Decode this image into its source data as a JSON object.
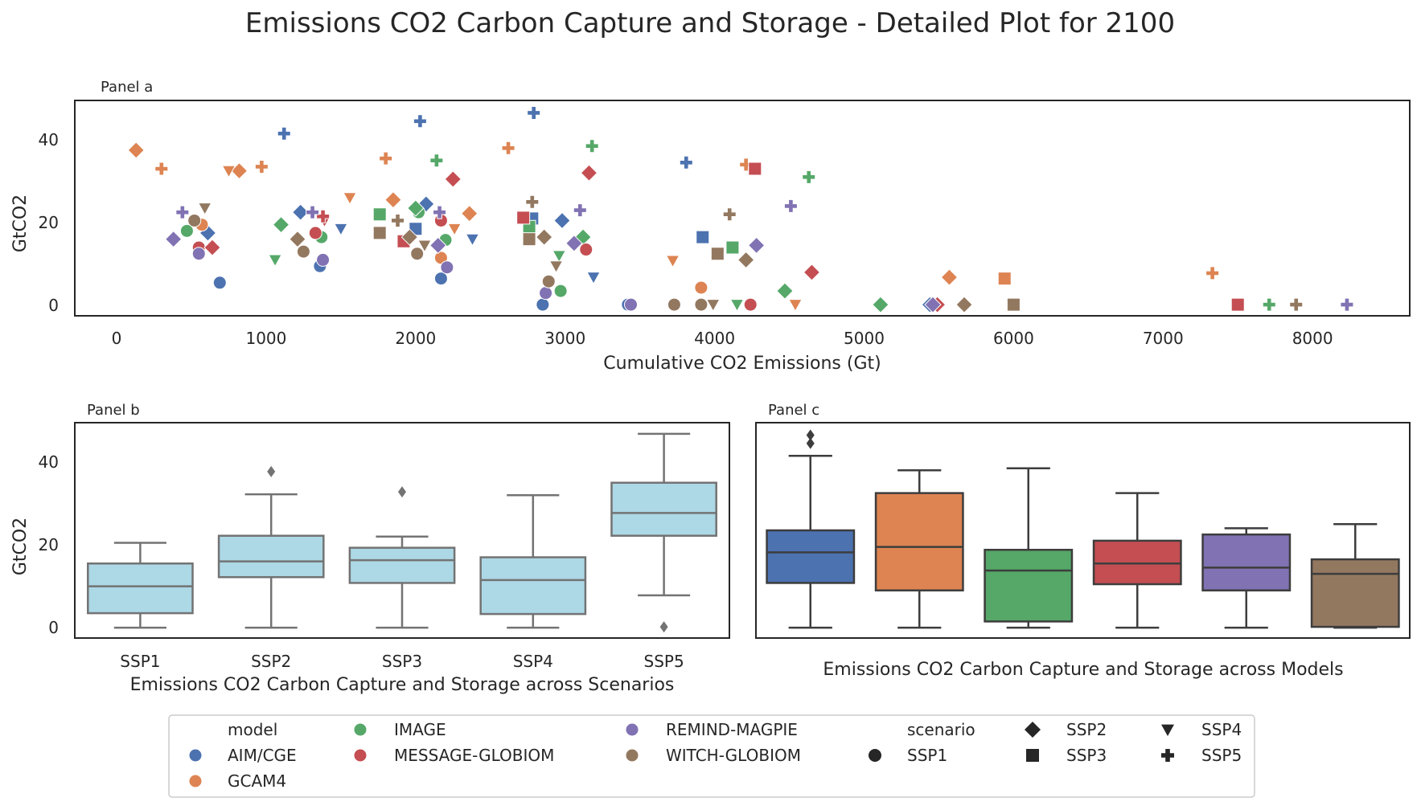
{
  "title": "Emissions CO2 Carbon Capture and Storage - Detailed Plot for 2100",
  "colors": {
    "AIM/CGE": "#4c72b0",
    "GCAM4": "#dd8452",
    "IMAGE": "#55a868",
    "MESSAGE-GLOBIOM": "#c44e52",
    "REMIND-MAGPIE": "#8172b3",
    "WITCH-GLOBIOM": "#937860",
    "box_light": "#add8e6",
    "axis": "#262626",
    "box_edge_b": "#737373",
    "box_edge_c": "#3d3d3d"
  },
  "markers": {
    "SSP1": "circle",
    "SSP2": "diamond",
    "SSP3": "square",
    "SSP4": "triangle-down",
    "SSP5": "plus"
  },
  "chart_data": [
    {
      "type": "scatter",
      "panel_title": "Panel a",
      "xlabel": "Cumulative CO2 Emissions (Gt)",
      "ylabel": "GtCO2",
      "xlim": [
        -280,
        8650
      ],
      "ylim": [
        -2.5,
        49.5
      ],
      "xticks": [
        0,
        1000,
        2000,
        3000,
        4000,
        5000,
        6000,
        7000,
        8000
      ],
      "yticks": [
        0,
        20,
        40
      ],
      "grid": false,
      "points": [
        {
          "model": "AIM/CGE",
          "scenario": "SSP1",
          "x": 690,
          "y": 5.5
        },
        {
          "model": "AIM/CGE",
          "scenario": "SSP1",
          "x": 2170,
          "y": 6.5
        },
        {
          "model": "AIM/CGE",
          "scenario": "SSP1",
          "x": 2850,
          "y": 0.2
        },
        {
          "model": "AIM/CGE",
          "scenario": "SSP1",
          "x": 3420,
          "y": 0.2
        },
        {
          "model": "AIM/CGE",
          "scenario": "SSP1",
          "x": 1360,
          "y": 9.5
        },
        {
          "model": "AIM/CGE",
          "scenario": "SSP2",
          "x": 610,
          "y": 17.5
        },
        {
          "model": "AIM/CGE",
          "scenario": "SSP2",
          "x": 1230,
          "y": 22.5
        },
        {
          "model": "AIM/CGE",
          "scenario": "SSP2",
          "x": 2070,
          "y": 24.5
        },
        {
          "model": "AIM/CGE",
          "scenario": "SSP2",
          "x": 2980,
          "y": 20.5
        },
        {
          "model": "AIM/CGE",
          "scenario": "SSP2",
          "x": 5440,
          "y": 0.2
        },
        {
          "model": "AIM/CGE",
          "scenario": "SSP3",
          "x": 2000,
          "y": 18.5
        },
        {
          "model": "AIM/CGE",
          "scenario": "SSP3",
          "x": 3920,
          "y": 16.5
        },
        {
          "model": "AIM/CGE",
          "scenario": "SSP3",
          "x": 2780,
          "y": 21
        },
        {
          "model": "AIM/CGE",
          "scenario": "SSP4",
          "x": 1500,
          "y": 18.5
        },
        {
          "model": "AIM/CGE",
          "scenario": "SSP4",
          "x": 2380,
          "y": 16
        },
        {
          "model": "AIM/CGE",
          "scenario": "SSP4",
          "x": 3190,
          "y": 6.8
        },
        {
          "model": "AIM/CGE",
          "scenario": "SSP5",
          "x": 1120,
          "y": 41.5
        },
        {
          "model": "AIM/CGE",
          "scenario": "SSP5",
          "x": 2030,
          "y": 44.5
        },
        {
          "model": "AIM/CGE",
          "scenario": "SSP5",
          "x": 2790,
          "y": 46.5
        },
        {
          "model": "AIM/CGE",
          "scenario": "SSP5",
          "x": 3810,
          "y": 34.5
        },
        {
          "model": "GCAM4",
          "scenario": "SSP1",
          "x": 570,
          "y": 19.5
        },
        {
          "model": "GCAM4",
          "scenario": "SSP1",
          "x": 2170,
          "y": 11.5
        },
        {
          "model": "GCAM4",
          "scenario": "SSP1",
          "x": 3910,
          "y": 4.3
        },
        {
          "model": "GCAM4",
          "scenario": "SSP2",
          "x": 130,
          "y": 37.5
        },
        {
          "model": "GCAM4",
          "scenario": "SSP2",
          "x": 820,
          "y": 32.5
        },
        {
          "model": "GCAM4",
          "scenario": "SSP2",
          "x": 1850,
          "y": 25.5
        },
        {
          "model": "GCAM4",
          "scenario": "SSP2",
          "x": 2360,
          "y": 22.2
        },
        {
          "model": "GCAM4",
          "scenario": "SSP2",
          "x": 5570,
          "y": 6.8
        },
        {
          "model": "GCAM4",
          "scenario": "SSP3",
          "x": 5940,
          "y": 6.5
        },
        {
          "model": "GCAM4",
          "scenario": "SSP4",
          "x": 750,
          "y": 32.5
        },
        {
          "model": "GCAM4",
          "scenario": "SSP4",
          "x": 1560,
          "y": 26
        },
        {
          "model": "GCAM4",
          "scenario": "SSP4",
          "x": 2260,
          "y": 18.5
        },
        {
          "model": "GCAM4",
          "scenario": "SSP4",
          "x": 3720,
          "y": 10.8
        },
        {
          "model": "GCAM4",
          "scenario": "SSP4",
          "x": 4540,
          "y": 0.2
        },
        {
          "model": "GCAM4",
          "scenario": "SSP5",
          "x": 300,
          "y": 33
        },
        {
          "model": "GCAM4",
          "scenario": "SSP5",
          "x": 970,
          "y": 33.5
        },
        {
          "model": "GCAM4",
          "scenario": "SSP5",
          "x": 1800,
          "y": 35.5
        },
        {
          "model": "GCAM4",
          "scenario": "SSP5",
          "x": 2620,
          "y": 38
        },
        {
          "model": "GCAM4",
          "scenario": "SSP5",
          "x": 4210,
          "y": 34
        },
        {
          "model": "GCAM4",
          "scenario": "SSP5",
          "x": 7330,
          "y": 7.8
        },
        {
          "model": "IMAGE",
          "scenario": "SSP1",
          "x": 470,
          "y": 18
        },
        {
          "model": "IMAGE",
          "scenario": "SSP1",
          "x": 1370,
          "y": 16.5
        },
        {
          "model": "IMAGE",
          "scenario": "SSP1",
          "x": 2020,
          "y": 22.5
        },
        {
          "model": "IMAGE",
          "scenario": "SSP1",
          "x": 2200,
          "y": 15.8
        },
        {
          "model": "IMAGE",
          "scenario": "SSP1",
          "x": 2970,
          "y": 3.5
        },
        {
          "model": "IMAGE",
          "scenario": "SSP2",
          "x": 1100,
          "y": 19.5
        },
        {
          "model": "IMAGE",
          "scenario": "SSP2",
          "x": 2000,
          "y": 23.5
        },
        {
          "model": "IMAGE",
          "scenario": "SSP2",
          "x": 3120,
          "y": 16.5
        },
        {
          "model": "IMAGE",
          "scenario": "SSP2",
          "x": 4470,
          "y": 3.5
        },
        {
          "model": "IMAGE",
          "scenario": "SSP2",
          "x": 5110,
          "y": 0.2
        },
        {
          "model": "IMAGE",
          "scenario": "SSP3",
          "x": 1760,
          "y": 22
        },
        {
          "model": "IMAGE",
          "scenario": "SSP3",
          "x": 2760,
          "y": 19
        },
        {
          "model": "IMAGE",
          "scenario": "SSP3",
          "x": 4120,
          "y": 14
        },
        {
          "model": "IMAGE",
          "scenario": "SSP4",
          "x": 1060,
          "y": 11
        },
        {
          "model": "IMAGE",
          "scenario": "SSP4",
          "x": 2960,
          "y": 12
        },
        {
          "model": "IMAGE",
          "scenario": "SSP4",
          "x": 4150,
          "y": 0.2
        },
        {
          "model": "IMAGE",
          "scenario": "SSP5",
          "x": 2140,
          "y": 35
        },
        {
          "model": "IMAGE",
          "scenario": "SSP5",
          "x": 3180,
          "y": 38.5
        },
        {
          "model": "IMAGE",
          "scenario": "SSP5",
          "x": 4630,
          "y": 31
        },
        {
          "model": "IMAGE",
          "scenario": "SSP5",
          "x": 7710,
          "y": 0.2
        },
        {
          "model": "MESSAGE-GLOBIOM",
          "scenario": "SSP1",
          "x": 550,
          "y": 14
        },
        {
          "model": "MESSAGE-GLOBIOM",
          "scenario": "SSP1",
          "x": 1330,
          "y": 17.5
        },
        {
          "model": "MESSAGE-GLOBIOM",
          "scenario": "SSP1",
          "x": 2170,
          "y": 20.5
        },
        {
          "model": "MESSAGE-GLOBIOM",
          "scenario": "SSP1",
          "x": 3140,
          "y": 13.5
        },
        {
          "model": "MESSAGE-GLOBIOM",
          "scenario": "SSP1",
          "x": 4240,
          "y": 0.2
        },
        {
          "model": "MESSAGE-GLOBIOM",
          "scenario": "SSP2",
          "x": 640,
          "y": 14
        },
        {
          "model": "MESSAGE-GLOBIOM",
          "scenario": "SSP2",
          "x": 2250,
          "y": 30.5
        },
        {
          "model": "MESSAGE-GLOBIOM",
          "scenario": "SSP2",
          "x": 3160,
          "y": 32
        },
        {
          "model": "MESSAGE-GLOBIOM",
          "scenario": "SSP2",
          "x": 4650,
          "y": 8
        },
        {
          "model": "MESSAGE-GLOBIOM",
          "scenario": "SSP2",
          "x": 5490,
          "y": 0.2
        },
        {
          "model": "MESSAGE-GLOBIOM",
          "scenario": "SSP3",
          "x": 1920,
          "y": 15.5
        },
        {
          "model": "MESSAGE-GLOBIOM",
          "scenario": "SSP3",
          "x": 2720,
          "y": 21.2
        },
        {
          "model": "MESSAGE-GLOBIOM",
          "scenario": "SSP3",
          "x": 4270,
          "y": 33
        },
        {
          "model": "MESSAGE-GLOBIOM",
          "scenario": "SSP3",
          "x": 7500,
          "y": 0.2
        },
        {
          "model": "MESSAGE-GLOBIOM",
          "scenario": "SSP4",
          "x": 1390,
          "y": 20.5
        },
        {
          "model": "MESSAGE-GLOBIOM",
          "scenario": "SSP5",
          "x": 1380,
          "y": 21.5
        },
        {
          "model": "REMIND-MAGPIE",
          "scenario": "SSP1",
          "x": 550,
          "y": 12.5
        },
        {
          "model": "REMIND-MAGPIE",
          "scenario": "SSP1",
          "x": 1380,
          "y": 11
        },
        {
          "model": "REMIND-MAGPIE",
          "scenario": "SSP1",
          "x": 2210,
          "y": 9.2
        },
        {
          "model": "REMIND-MAGPIE",
          "scenario": "SSP1",
          "x": 2870,
          "y": 3
        },
        {
          "model": "REMIND-MAGPIE",
          "scenario": "SSP1",
          "x": 3440,
          "y": 0.2
        },
        {
          "model": "REMIND-MAGPIE",
          "scenario": "SSP2",
          "x": 380,
          "y": 16
        },
        {
          "model": "REMIND-MAGPIE",
          "scenario": "SSP2",
          "x": 2150,
          "y": 14.5
        },
        {
          "model": "REMIND-MAGPIE",
          "scenario": "SSP2",
          "x": 3060,
          "y": 15
        },
        {
          "model": "REMIND-MAGPIE",
          "scenario": "SSP2",
          "x": 4280,
          "y": 14.5
        },
        {
          "model": "REMIND-MAGPIE",
          "scenario": "SSP2",
          "x": 5460,
          "y": 0.2
        },
        {
          "model": "REMIND-MAGPIE",
          "scenario": "SSP5",
          "x": 440,
          "y": 22.5
        },
        {
          "model": "REMIND-MAGPIE",
          "scenario": "SSP5",
          "x": 1310,
          "y": 22.5
        },
        {
          "model": "REMIND-MAGPIE",
          "scenario": "SSP5",
          "x": 2160,
          "y": 22.5
        },
        {
          "model": "REMIND-MAGPIE",
          "scenario": "SSP5",
          "x": 3100,
          "y": 23
        },
        {
          "model": "REMIND-MAGPIE",
          "scenario": "SSP5",
          "x": 4510,
          "y": 24
        },
        {
          "model": "REMIND-MAGPIE",
          "scenario": "SSP5",
          "x": 8230,
          "y": 0.2
        },
        {
          "model": "WITCH-GLOBIOM",
          "scenario": "SSP1",
          "x": 520,
          "y": 20.5
        },
        {
          "model": "WITCH-GLOBIOM",
          "scenario": "SSP1",
          "x": 1250,
          "y": 13
        },
        {
          "model": "WITCH-GLOBIOM",
          "scenario": "SSP1",
          "x": 2010,
          "y": 12.5
        },
        {
          "model": "WITCH-GLOBIOM",
          "scenario": "SSP1",
          "x": 2890,
          "y": 5.8
        },
        {
          "model": "WITCH-GLOBIOM",
          "scenario": "SSP1",
          "x": 3730,
          "y": 0.2
        },
        {
          "model": "WITCH-GLOBIOM",
          "scenario": "SSP1",
          "x": 3910,
          "y": 0.2
        },
        {
          "model": "WITCH-GLOBIOM",
          "scenario": "SSP2",
          "x": 1210,
          "y": 16
        },
        {
          "model": "WITCH-GLOBIOM",
          "scenario": "SSP2",
          "x": 1960,
          "y": 16.5
        },
        {
          "model": "WITCH-GLOBIOM",
          "scenario": "SSP2",
          "x": 2860,
          "y": 16.5
        },
        {
          "model": "WITCH-GLOBIOM",
          "scenario": "SSP2",
          "x": 4210,
          "y": 11
        },
        {
          "model": "WITCH-GLOBIOM",
          "scenario": "SSP2",
          "x": 5670,
          "y": 0.2
        },
        {
          "model": "WITCH-GLOBIOM",
          "scenario": "SSP3",
          "x": 1760,
          "y": 17.5
        },
        {
          "model": "WITCH-GLOBIOM",
          "scenario": "SSP3",
          "x": 2760,
          "y": 16
        },
        {
          "model": "WITCH-GLOBIOM",
          "scenario": "SSP3",
          "x": 4020,
          "y": 12.5
        },
        {
          "model": "WITCH-GLOBIOM",
          "scenario": "SSP3",
          "x": 6000,
          "y": 0.2
        },
        {
          "model": "WITCH-GLOBIOM",
          "scenario": "SSP4",
          "x": 590,
          "y": 23.5
        },
        {
          "model": "WITCH-GLOBIOM",
          "scenario": "SSP4",
          "x": 2060,
          "y": 14.5
        },
        {
          "model": "WITCH-GLOBIOM",
          "scenario": "SSP4",
          "x": 2940,
          "y": 9.5
        },
        {
          "model": "WITCH-GLOBIOM",
          "scenario": "SSP4",
          "x": 3990,
          "y": 0.2
        },
        {
          "model": "WITCH-GLOBIOM",
          "scenario": "SSP5",
          "x": 1880,
          "y": 20.5
        },
        {
          "model": "WITCH-GLOBIOM",
          "scenario": "SSP5",
          "x": 2780,
          "y": 25
        },
        {
          "model": "WITCH-GLOBIOM",
          "scenario": "SSP5",
          "x": 4100,
          "y": 22
        },
        {
          "model": "WITCH-GLOBIOM",
          "scenario": "SSP5",
          "x": 7890,
          "y": 0.2
        }
      ]
    },
    {
      "type": "box",
      "panel_title": "Panel b",
      "xlabel": "Emissions CO2 Carbon Capture and Storage across Scenarios",
      "ylabel": "GtCO2",
      "ylim": [
        -2.5,
        49.5
      ],
      "yticks": [
        0,
        20,
        40
      ],
      "categories": [
        "SSP1",
        "SSP2",
        "SSP3",
        "SSP4",
        "SSP5"
      ],
      "boxes": [
        {
          "min": 0,
          "q1": 3.5,
          "median": 10,
          "q3": 15.5,
          "max": 20.5,
          "outliers": []
        },
        {
          "min": 0,
          "q1": 12.2,
          "median": 16,
          "q3": 22.2,
          "max": 32.2,
          "outliers": [
            37.7
          ]
        },
        {
          "min": 0,
          "q1": 10.8,
          "median": 16.3,
          "q3": 19.3,
          "max": 22,
          "outliers": [
            32.8
          ]
        },
        {
          "min": 0,
          "q1": 3.3,
          "median": 11.5,
          "q3": 17,
          "max": 32,
          "outliers": []
        },
        {
          "min": 7.8,
          "q1": 22.2,
          "median": 27.7,
          "q3": 35,
          "max": 46.8,
          "outliers": [
            0.2
          ]
        }
      ]
    },
    {
      "type": "box",
      "panel_title": "Panel c",
      "xlabel": "Emissions CO2 Carbon Capture and Storage across Models",
      "ylim": [
        -2.5,
        49.5
      ],
      "categories": [
        "AIM/CGE",
        "GCAM4",
        "IMAGE",
        "MESSAGE-GLOBIOM",
        "REMIND-MAGPIE",
        "WITCH-GLOBIOM"
      ],
      "boxes": [
        {
          "min": 0,
          "q1": 10.8,
          "median": 18.2,
          "q3": 23.5,
          "max": 41.5,
          "outliers": [
            44.5,
            46.5
          ]
        },
        {
          "min": 0,
          "q1": 9,
          "median": 19.5,
          "q3": 32.5,
          "max": 38,
          "outliers": []
        },
        {
          "min": 0,
          "q1": 1.5,
          "median": 13.8,
          "q3": 18.8,
          "max": 38.5,
          "outliers": []
        },
        {
          "min": 0,
          "q1": 10.5,
          "median": 15.5,
          "q3": 21,
          "max": 32.5,
          "outliers": []
        },
        {
          "min": 0,
          "q1": 9,
          "median": 14.5,
          "q3": 22.5,
          "max": 24,
          "outliers": []
        },
        {
          "min": 0,
          "q1": 0.2,
          "median": 13,
          "q3": 16.5,
          "max": 25,
          "outliers": []
        }
      ]
    }
  ],
  "legend": {
    "model_header": "model",
    "models": [
      "AIM/CGE",
      "GCAM4",
      "IMAGE",
      "MESSAGE-GLOBIOM",
      "REMIND-MAGPIE",
      "WITCH-GLOBIOM"
    ],
    "scenario_header": "scenario",
    "scenarios": [
      "SSP1",
      "SSP2",
      "SSP3",
      "SSP4",
      "SSP5"
    ],
    "placement": "bottom-center"
  }
}
